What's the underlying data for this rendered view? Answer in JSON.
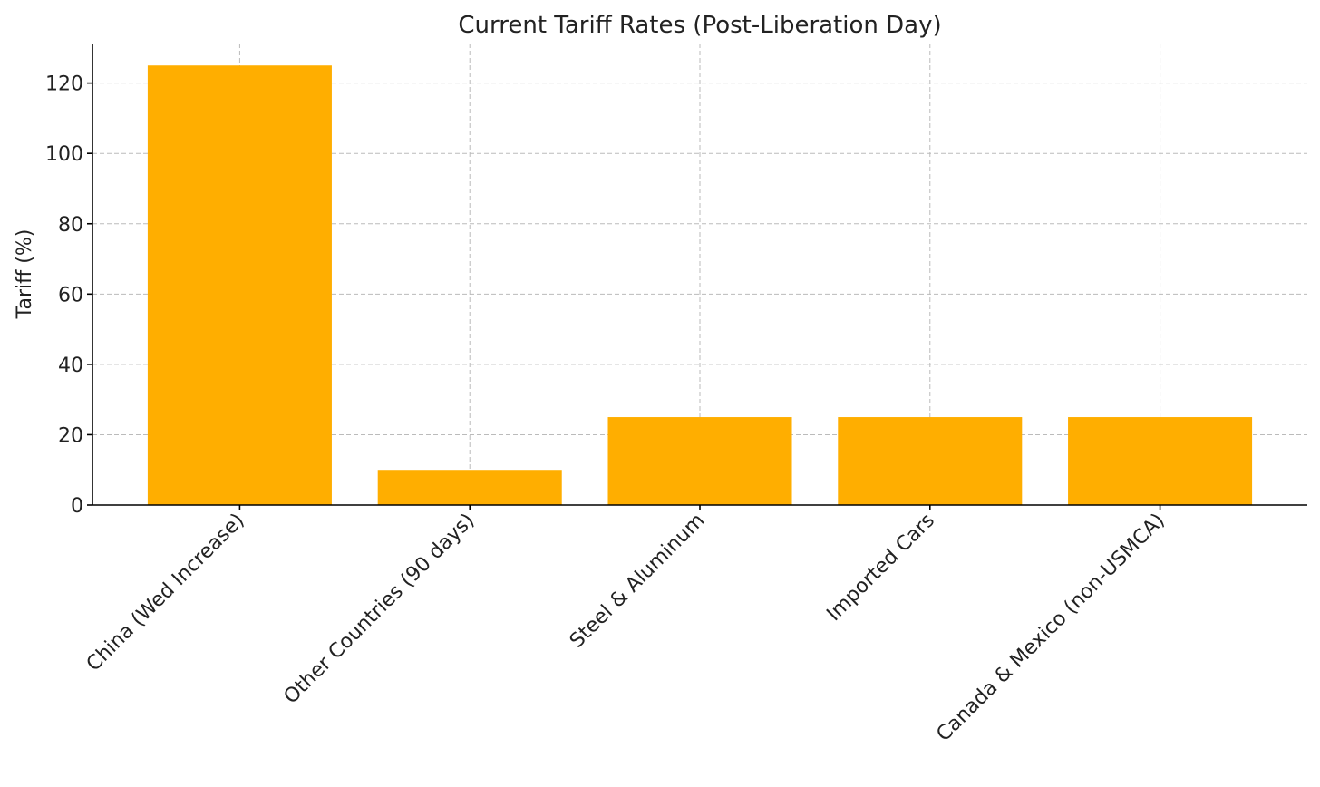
{
  "chart_data": {
    "type": "bar",
    "title": "Current Tariff Rates (Post-Liberation Day)",
    "ylabel": "Tariff (%)",
    "categories": [
      "China (Wed Increase)",
      "Other Countries (90 days)",
      "Steel & Aluminum",
      "Imported Cars",
      "Canada & Mexico (non-USMCA)"
    ],
    "values": [
      125,
      10,
      25,
      25,
      25
    ],
    "color": "#ffae00",
    "ylim": [
      0,
      131.25
    ],
    "yticks": [
      0,
      20,
      40,
      60,
      80,
      100,
      120
    ],
    "grid": true
  }
}
